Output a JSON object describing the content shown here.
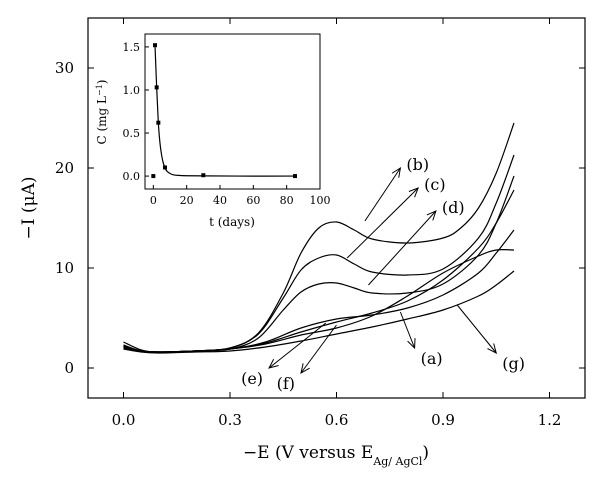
{
  "chart_data": [
    {
      "type": "line",
      "title": "",
      "xlabel": "−E (V versus E",
      "xlabel_sub": "Ag/ AgCl",
      "xlabel_end": ")",
      "ylabel": "−I (μA)",
      "xlim": [
        -0.1,
        1.3
      ],
      "ylim": [
        -3,
        35
      ],
      "x_ticks": [
        0.0,
        0.3,
        0.6,
        0.9,
        1.2
      ],
      "x_tick_labels": [
        "0.0",
        "0.3",
        "0.6",
        "0.9",
        "1.2"
      ],
      "y_ticks": [
        0,
        10,
        20,
        30
      ],
      "y_tick_labels": [
        "0",
        "10",
        "20",
        "30"
      ],
      "grid": false,
      "series": [
        {
          "name": "(a)",
          "x": [
            0.0,
            0.05,
            0.1,
            0.2,
            0.3,
            0.4,
            0.5,
            0.6,
            0.7,
            0.8,
            0.9,
            1.0,
            1.05,
            1.1
          ],
          "y": [
            2.0,
            1.7,
            1.6,
            1.7,
            1.9,
            2.6,
            4.0,
            4.9,
            5.3,
            6.0,
            7.3,
            9.5,
            11.5,
            13.8
          ]
        },
        {
          "name": "(b)",
          "x": [
            0.0,
            0.05,
            0.1,
            0.2,
            0.3,
            0.38,
            0.45,
            0.5,
            0.55,
            0.6,
            0.65,
            0.7,
            0.8,
            0.9,
            0.95,
            1.0,
            1.05,
            1.1
          ],
          "y": [
            2.6,
            1.8,
            1.6,
            1.7,
            2.0,
            3.5,
            7.5,
            11.5,
            14.0,
            14.6,
            13.8,
            12.9,
            12.5,
            13.0,
            14.0,
            16.0,
            19.5,
            24.5
          ]
        },
        {
          "name": "(c)",
          "x": [
            0.0,
            0.05,
            0.1,
            0.2,
            0.3,
            0.38,
            0.45,
            0.5,
            0.55,
            0.6,
            0.65,
            0.7,
            0.8,
            0.9,
            1.0,
            1.05,
            1.1
          ],
          "y": [
            2.3,
            1.7,
            1.6,
            1.7,
            2.0,
            3.4,
            7.0,
            9.8,
            11.0,
            11.3,
            10.4,
            9.6,
            9.3,
            9.9,
            13.0,
            16.5,
            21.3
          ]
        },
        {
          "name": "(d)",
          "x": [
            0.0,
            0.05,
            0.1,
            0.2,
            0.3,
            0.38,
            0.45,
            0.5,
            0.55,
            0.6,
            0.65,
            0.7,
            0.8,
            0.9,
            1.0,
            1.05,
            1.1
          ],
          "y": [
            2.2,
            1.7,
            1.6,
            1.7,
            1.9,
            3.0,
            5.8,
            7.6,
            8.4,
            8.5,
            8.0,
            7.5,
            7.5,
            8.4,
            11.3,
            14.5,
            19.2
          ]
        },
        {
          "name": "(e)",
          "x": [
            0.0,
            0.05,
            0.1,
            0.2,
            0.3,
            0.4,
            0.5,
            0.6,
            0.7,
            0.8,
            0.9,
            1.0,
            1.05,
            1.1
          ],
          "y": [
            2.2,
            1.7,
            1.6,
            1.7,
            1.9,
            2.4,
            3.3,
            4.0,
            5.2,
            7.2,
            9.5,
            11.2,
            11.8,
            11.8
          ]
        },
        {
          "name": "(f)",
          "x": [
            0.0,
            0.05,
            0.1,
            0.2,
            0.3,
            0.4,
            0.5,
            0.6,
            0.7,
            0.8,
            0.9,
            1.0,
            1.05,
            1.1
          ],
          "y": [
            2.1,
            1.7,
            1.6,
            1.7,
            1.9,
            2.5,
            3.6,
            4.6,
            5.5,
            6.7,
            8.8,
            12.0,
            14.5,
            17.8
          ]
        },
        {
          "name": "(g)",
          "x": [
            0.0,
            0.05,
            0.1,
            0.2,
            0.3,
            0.4,
            0.5,
            0.6,
            0.7,
            0.8,
            0.9,
            1.0,
            1.05,
            1.1
          ],
          "y": [
            1.9,
            1.6,
            1.5,
            1.6,
            1.7,
            2.1,
            2.7,
            3.4,
            4.1,
            4.9,
            5.8,
            7.2,
            8.3,
            9.7
          ]
        }
      ],
      "annotations": [
        {
          "text": "(b)",
          "tip_x": 0.78,
          "tip_y": 20.0,
          "tail_x": 0.68,
          "tail_y": 14.7
        },
        {
          "text": "(c)",
          "tip_x": 0.83,
          "tip_y": 18.0,
          "tail_x": 0.63,
          "tail_y": 11.0
        },
        {
          "text": "(d)",
          "tip_x": 0.88,
          "tip_y": 15.7,
          "tail_x": 0.69,
          "tail_y": 8.3
        },
        {
          "text": "(a)",
          "tip_x": 0.82,
          "tip_y": 2.0,
          "tail_x": 0.78,
          "tail_y": 5.6
        },
        {
          "text": "(e)",
          "tip_x": 0.41,
          "tip_y": 0.0,
          "tail_x": 0.57,
          "tail_y": 4.5
        },
        {
          "text": "(f)",
          "tip_x": 0.5,
          "tip_y": -0.5,
          "tail_x": 0.6,
          "tail_y": 4.3
        },
        {
          "text": "(g)",
          "tip_x": 1.05,
          "tip_y": 1.5,
          "tail_x": 0.94,
          "tail_y": 6.3
        }
      ]
    },
    {
      "type": "scatter",
      "title": "",
      "xlabel": "t (days)",
      "ylabel": "C (mg L",
      "ylabel_sup": "−1",
      "ylabel_end": ")",
      "xlim": [
        -5,
        100
      ],
      "ylim": [
        -0.15,
        1.65
      ],
      "x_ticks": [
        0,
        20,
        40,
        60,
        80,
        100
      ],
      "x_tick_labels": [
        "0",
        "20",
        "40",
        "60",
        "80",
        "100"
      ],
      "y_ticks": [
        0.0,
        0.5,
        1.0,
        1.5
      ],
      "y_tick_labels": [
        "0.0",
        "0.5",
        "1.0",
        "1.5"
      ],
      "grid": false,
      "points": {
        "x": [
          0,
          1,
          2,
          3,
          7,
          30,
          85
        ],
        "y": [
          0.0,
          1.52,
          1.03,
          0.62,
          0.1,
          0.01,
          0.0
        ]
      },
      "fit": {
        "x": [
          1,
          2,
          3,
          4,
          5,
          6,
          7,
          8,
          10,
          12,
          15,
          20,
          30,
          50,
          85
        ],
        "y": [
          1.52,
          1.03,
          0.62,
          0.38,
          0.24,
          0.15,
          0.1,
          0.06,
          0.03,
          0.015,
          0.008,
          0.004,
          0.002,
          0.0,
          0.0
        ]
      }
    }
  ]
}
